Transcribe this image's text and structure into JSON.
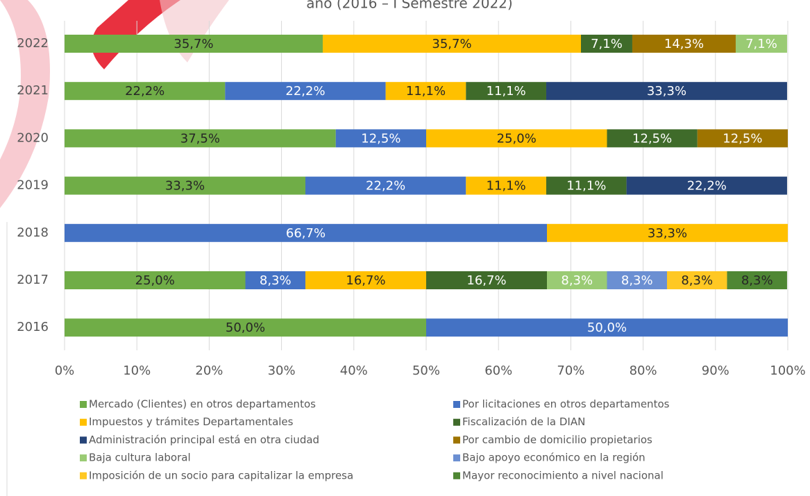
{
  "chart_data": {
    "type": "stacked_barh",
    "title": "año (2016 – I Semestre 2022)",
    "categories": [
      "2022",
      "2021",
      "2020",
      "2019",
      "2018",
      "2017",
      "2016"
    ],
    "series": [
      {
        "name": "Mercado (Clientes) en otros departamentos",
        "color": "#70ad47",
        "label_color": "#262626",
        "values": [
          35.7,
          22.2,
          37.5,
          33.3,
          null,
          25.0,
          50.0
        ],
        "value_labels": [
          "35,7%",
          "22,2%",
          "37,5%",
          "33,3%",
          null,
          "25,0%",
          "50,0%"
        ]
      },
      {
        "name": "Por licitaciones en otros departamentos",
        "color": "#4472c4",
        "label_color": "#ffffff",
        "values": [
          null,
          22.2,
          12.5,
          22.2,
          66.7,
          8.3,
          50.0
        ],
        "value_labels": [
          null,
          "22,2%",
          "12,5%",
          "22,2%",
          "66,7%",
          "8,3%",
          "50,0%"
        ]
      },
      {
        "name": "Impuestos y trámites Departamentales",
        "color": "#ffc000",
        "label_color": "#262626",
        "values": [
          35.7,
          11.1,
          25.0,
          11.1,
          33.3,
          16.7,
          null
        ],
        "value_labels": [
          "35,7%",
          "11,1%",
          "25,0%",
          "11,1%",
          "33,3%",
          "16,7%",
          null
        ]
      },
      {
        "name": "Fiscalización de la DIAN",
        "color": "#3f6b2a",
        "label_color": "#ffffff",
        "values": [
          7.1,
          11.1,
          12.5,
          11.1,
          null,
          16.7,
          null
        ],
        "value_labels": [
          "7,1%",
          "11,1%",
          "12,5%",
          "11,1%",
          null,
          "16,7%",
          null
        ]
      },
      {
        "name": "Administración principal está en otra ciudad",
        "color": "#264478",
        "label_color": "#ffffff",
        "values": [
          null,
          33.3,
          null,
          22.2,
          null,
          null,
          null
        ],
        "value_labels": [
          null,
          "33,3%",
          null,
          "22,2%",
          null,
          null,
          null
        ]
      },
      {
        "name": "Por cambio de domicilio propietarios",
        "color": "#9e7400",
        "label_color": "#ffffff",
        "values": [
          14.3,
          null,
          12.5,
          null,
          null,
          null,
          null
        ],
        "value_labels": [
          "14,3%",
          null,
          "12,5%",
          null,
          null,
          null,
          null
        ]
      },
      {
        "name": "Baja cultura laboral",
        "color": "#9acb74",
        "label_color": "#ffffff",
        "values": [
          7.1,
          null,
          null,
          null,
          null,
          8.3,
          null
        ],
        "value_labels": [
          "7,1%",
          null,
          null,
          null,
          null,
          "8,3%",
          null
        ]
      },
      {
        "name": "Bajo apoyo económico en la región",
        "color": "#6b8fd2",
        "label_color": "#ffffff",
        "values": [
          null,
          null,
          null,
          null,
          null,
          8.3,
          null
        ],
        "value_labels": [
          null,
          null,
          null,
          null,
          null,
          "8,3%",
          null
        ]
      },
      {
        "name": "Imposición de un socio para capitalizar la empresa",
        "color": "#ffc823",
        "label_color": "#262626",
        "values": [
          null,
          null,
          null,
          null,
          null,
          8.3,
          null
        ],
        "value_labels": [
          null,
          null,
          null,
          null,
          null,
          "8,3%",
          null
        ]
      },
      {
        "name": "Mayor reconocimiento a nivel nacional",
        "color": "#4f8734",
        "label_color": "#262626",
        "values": [
          null,
          null,
          null,
          null,
          null,
          8.3,
          null
        ],
        "value_labels": [
          null,
          null,
          null,
          null,
          null,
          "8,3%",
          null
        ]
      }
    ],
    "xlim": [
      0,
      100
    ],
    "xticks": [
      {
        "value": 0,
        "label": "0%"
      },
      {
        "value": 10,
        "label": "10%"
      },
      {
        "value": 20,
        "label": "20%"
      },
      {
        "value": 30,
        "label": "30%"
      },
      {
        "value": 40,
        "label": "40%"
      },
      {
        "value": 50,
        "label": "50%"
      },
      {
        "value": 60,
        "label": "60%"
      },
      {
        "value": 70,
        "label": "70%"
      },
      {
        "value": 80,
        "label": "80%"
      },
      {
        "value": 90,
        "label": "90%"
      },
      {
        "value": 100,
        "label": "100%"
      }
    ],
    "grid": true,
    "legend": "bottom"
  }
}
